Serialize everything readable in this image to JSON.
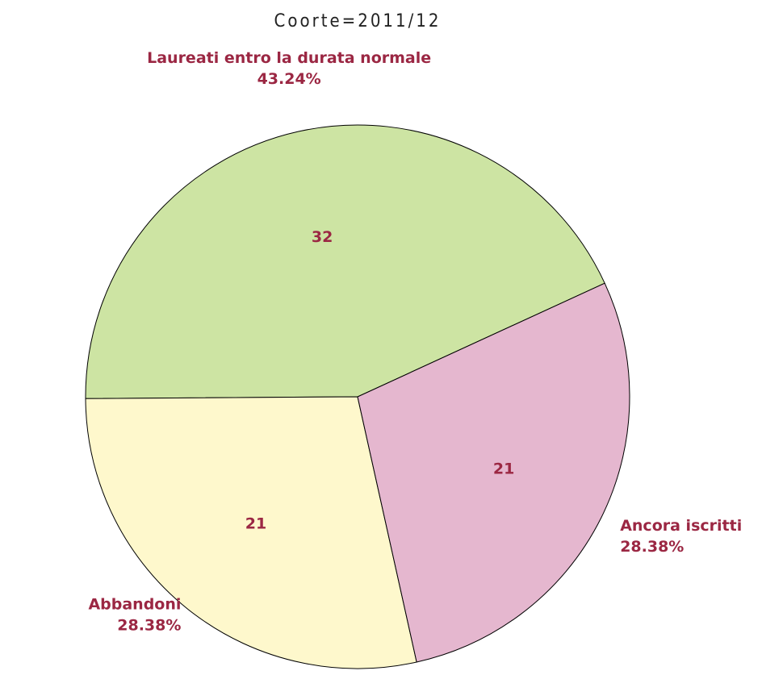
{
  "chart_data": {
    "type": "pie",
    "title": "Coorte=2011/12",
    "categories": [
      "Laureati entro la durata normale",
      "Abbandoni",
      "Ancora iscritti"
    ],
    "values": [
      32,
      21,
      21
    ],
    "percent_labels": [
      "43.24%",
      "28.38%",
      "28.38%"
    ],
    "colors": [
      "#cde4a3",
      "#fef8cc",
      "#e5b7cf"
    ]
  }
}
